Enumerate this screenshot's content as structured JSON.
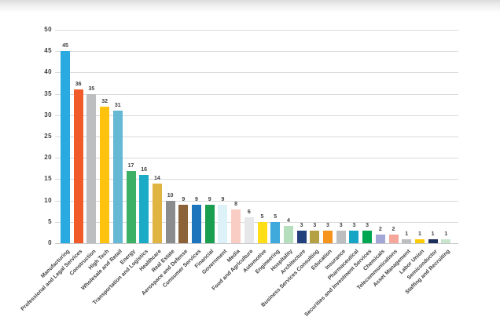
{
  "page": {
    "background": "#ffffff",
    "top_shadow_color": "#dcdcdc",
    "title": ""
  },
  "chart_data": {
    "type": "bar",
    "title": "",
    "xlabel": "",
    "ylabel": "",
    "ylim": [
      0,
      50
    ],
    "ytick_step": 5,
    "yticks": [
      0,
      5,
      10,
      15,
      20,
      25,
      30,
      35,
      40,
      45,
      50
    ],
    "grid": "horizontal",
    "legend_position": "none",
    "grid_color": "#d8d9da",
    "axis_label_color": "#414042",
    "value_labels_shown": true,
    "categories": [
      "Manufacturing",
      "Professional and Legal Services",
      "Construction",
      "High Tech",
      "Wholesale and Retail",
      "Energy",
      "Transportation and Logistics",
      "Healthcare",
      "Real Estate",
      "Aerospace and Defense",
      "Consumer Services",
      "Financial",
      "Government",
      "Media",
      "Food and Agriculture",
      "Automotive",
      "Engineering",
      "Hospitality",
      "Architecture",
      "Business Services Consulting",
      "Education",
      "Insurance",
      "Pharmaceutical",
      "Securities and Investment Services",
      "Chemicals",
      "Telecommunications",
      "Asset Management",
      "Labor Union",
      "Semiconductor",
      "Staffing and Recruiting"
    ],
    "values": [
      45,
      36,
      35,
      32,
      31,
      17,
      16,
      14,
      10,
      9,
      9,
      9,
      9,
      8,
      6,
      5,
      5,
      4,
      3,
      3,
      3,
      3,
      3,
      3,
      2,
      2,
      1,
      1,
      1,
      1
    ],
    "bar_colors": [
      "#29abe2",
      "#f15b2a",
      "#bcbec0",
      "#ffc20e",
      "#66b9d4",
      "#3cb065",
      "#1babc6",
      "#dfb440",
      "#8a8c8e",
      "#8c6239",
      "#1c75bc",
      "#1a9e4f",
      "#ddf1f9",
      "#f9cdc4",
      "#e6e7e8",
      "#ffde17",
      "#3fa9dc",
      "#b5dfbc",
      "#24407c",
      "#b5a144",
      "#f7941e",
      "#bcbec0",
      "#16a5c5",
      "#00a651",
      "#a3a7d6",
      "#f5a79c",
      "#bcbec0",
      "#ffcb05",
      "#1b2e5c",
      "#c9e6cd"
    ]
  }
}
